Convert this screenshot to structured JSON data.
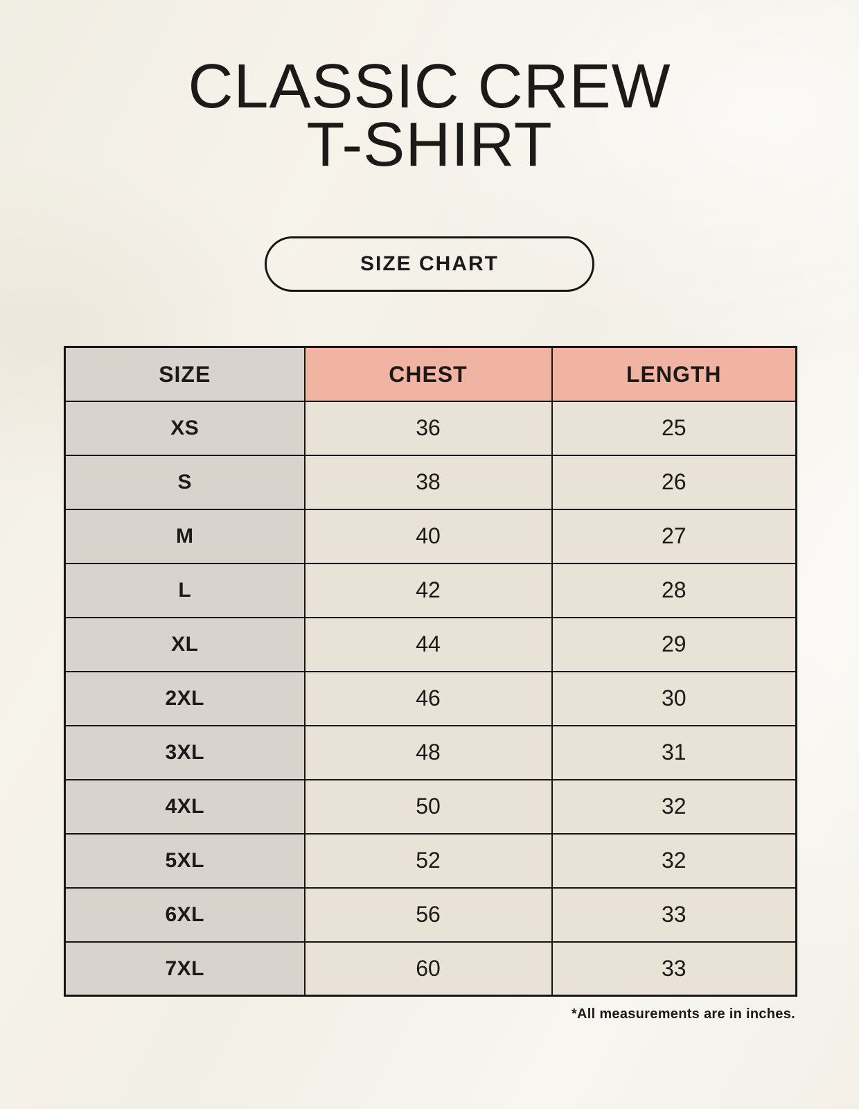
{
  "header": {
    "title_line1": "CLASSIC CREW",
    "title_line2": "T-SHIRT",
    "badge_label": "SIZE CHART"
  },
  "table": {
    "columns": [
      "SIZE",
      "CHEST",
      "LENGTH"
    ],
    "rows": [
      {
        "size": "XS",
        "chest": "36",
        "length": "25"
      },
      {
        "size": "S",
        "chest": "38",
        "length": "26"
      },
      {
        "size": "M",
        "chest": "40",
        "length": "27"
      },
      {
        "size": "L",
        "chest": "42",
        "length": "28"
      },
      {
        "size": "XL",
        "chest": "44",
        "length": "29"
      },
      {
        "size": "2XL",
        "chest": "46",
        "length": "30"
      },
      {
        "size": "3XL",
        "chest": "48",
        "length": "31"
      },
      {
        "size": "4XL",
        "chest": "50",
        "length": "32"
      },
      {
        "size": "5XL",
        "chest": "52",
        "length": "32"
      },
      {
        "size": "6XL",
        "chest": "56",
        "length": "33"
      },
      {
        "size": "7XL",
        "chest": "60",
        "length": "33"
      }
    ]
  },
  "footnote": "*All measurements are in inches.",
  "units": "inches",
  "colors": {
    "background": "#f4f1e8",
    "header_accent": "#f1b4a3",
    "size_column": "#d9d3cd",
    "cell": "#e9e2d7",
    "border": "#161514",
    "text": "#1b1a18"
  }
}
